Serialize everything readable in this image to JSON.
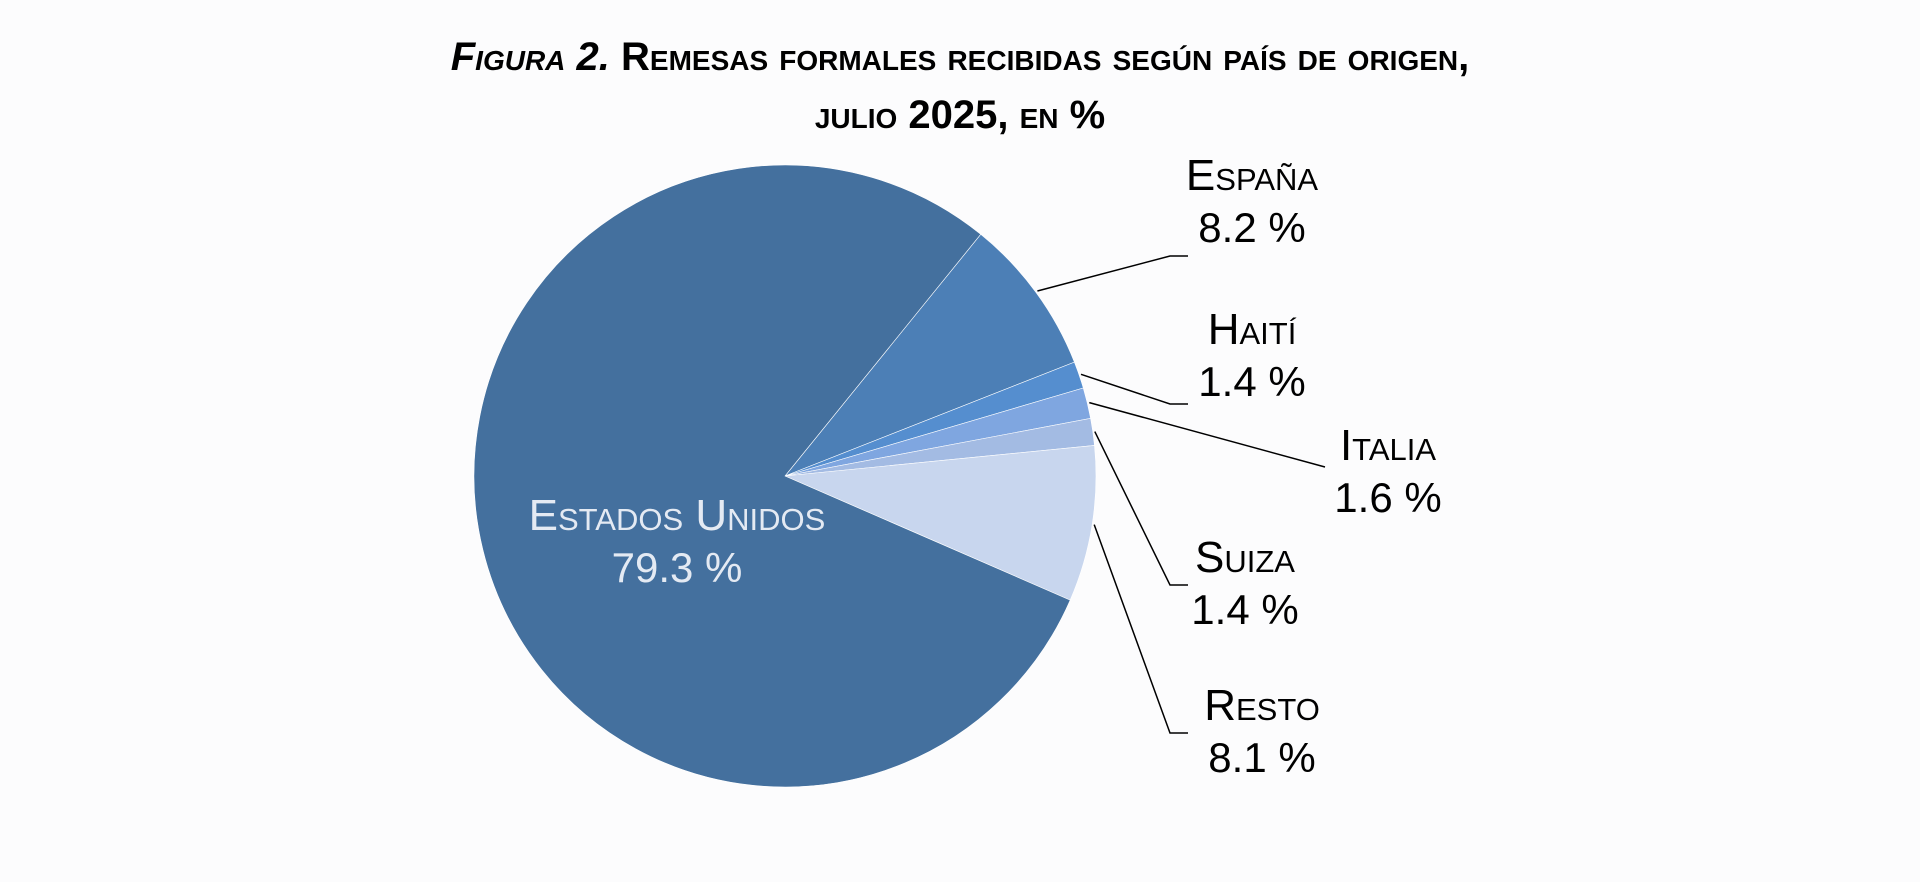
{
  "title": {
    "figure_label": "Figura 2.",
    "line1": "Remesas formales recibidas según país de origen,",
    "line2": "julio 2025, en %"
  },
  "chart_data": {
    "type": "pie",
    "title": "Figura 2. Remesas formales recibidas según país de origen, julio 2025, en %",
    "unit": "%",
    "slices": [
      {
        "label": "España",
        "value": 8.2,
        "display": "8.2 %",
        "color": "#4c7fb6"
      },
      {
        "label": "Haití",
        "value": 1.4,
        "display": "1.4 %",
        "color": "#558ecf"
      },
      {
        "label": "Italia",
        "value": 1.6,
        "display": "1.6 %",
        "color": "#7fa6e0"
      },
      {
        "label": "Suiza",
        "value": 1.4,
        "display": "1.4 %",
        "color": "#a3bbe3"
      },
      {
        "label": "Resto",
        "value": 8.1,
        "display": "8.1 %",
        "color": "#c8d6ee"
      },
      {
        "label": "Estados Unidos",
        "value": 79.3,
        "display": "79.3 %",
        "color": "#44709e"
      }
    ],
    "start_angle_deg": 39,
    "direction": "clockwise"
  }
}
